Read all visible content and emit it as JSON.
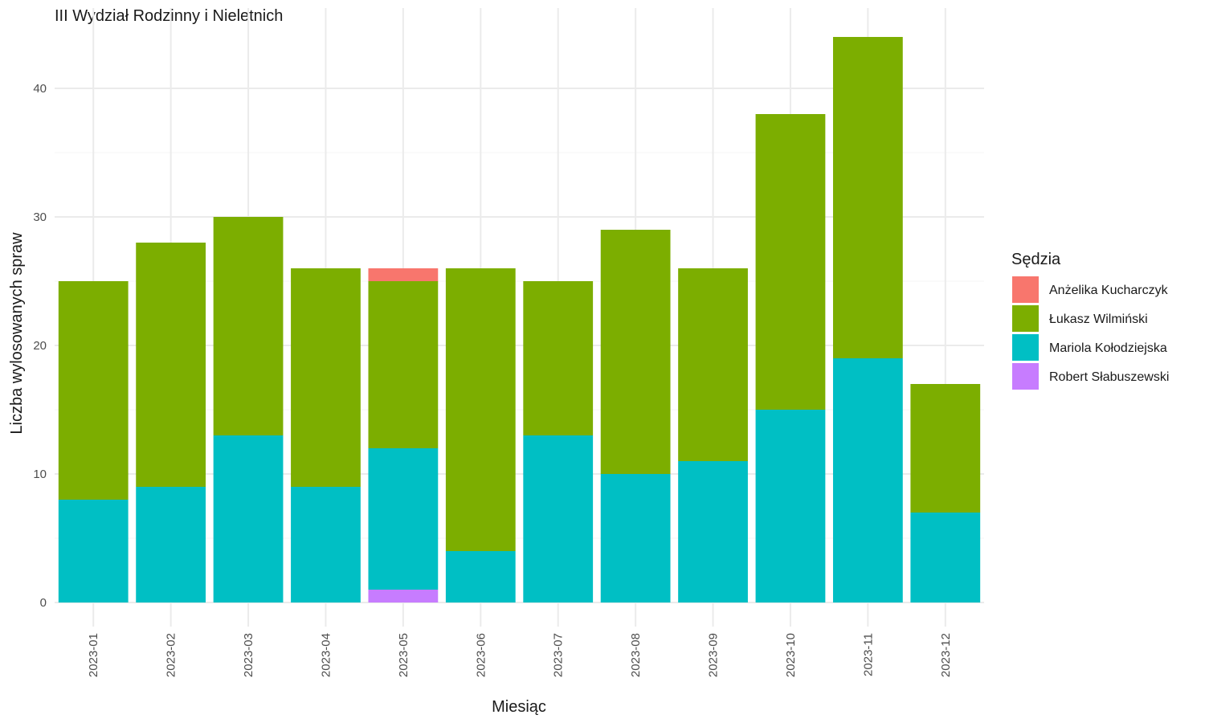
{
  "chart_data": {
    "type": "bar",
    "stacked": true,
    "title": "III Wydział Rodzinny i Nieletnich",
    "xlabel": "Miesiąc",
    "ylabel": "Liczba wylosowanych spraw",
    "ylim": [
      0,
      44
    ],
    "yticks": [
      0,
      10,
      20,
      30,
      40
    ],
    "grid": true,
    "legend": {
      "title": "Sędzia",
      "position": "right"
    },
    "categories": [
      "2023-01",
      "2023-02",
      "2023-03",
      "2023-04",
      "2023-05",
      "2023-06",
      "2023-07",
      "2023-08",
      "2023-09",
      "2023-10",
      "2023-11",
      "2023-12"
    ],
    "stack_order": [
      "Robert Słabuszewski",
      "Mariola Kołodziejska",
      "Łukasz Wilmiński",
      "Anżelika Kucharczyk"
    ],
    "series": [
      {
        "name": "Anżelika Kucharczyk",
        "color": "#F8766D",
        "values": [
          0,
          0,
          0,
          0,
          1,
          0,
          0,
          0,
          0,
          0,
          0,
          0
        ]
      },
      {
        "name": "Łukasz Wilmiński",
        "color": "#7CAE00",
        "values": [
          17,
          19,
          17,
          17,
          13,
          22,
          12,
          19,
          15,
          23,
          25,
          10
        ]
      },
      {
        "name": "Mariola Kołodziejska",
        "color": "#00BFC4",
        "values": [
          8,
          9,
          13,
          9,
          11,
          4,
          13,
          10,
          11,
          15,
          19,
          7
        ]
      },
      {
        "name": "Robert Słabuszewski",
        "color": "#C77CFF",
        "values": [
          0,
          0,
          0,
          0,
          1,
          0,
          0,
          0,
          0,
          0,
          0,
          0
        ]
      }
    ]
  }
}
